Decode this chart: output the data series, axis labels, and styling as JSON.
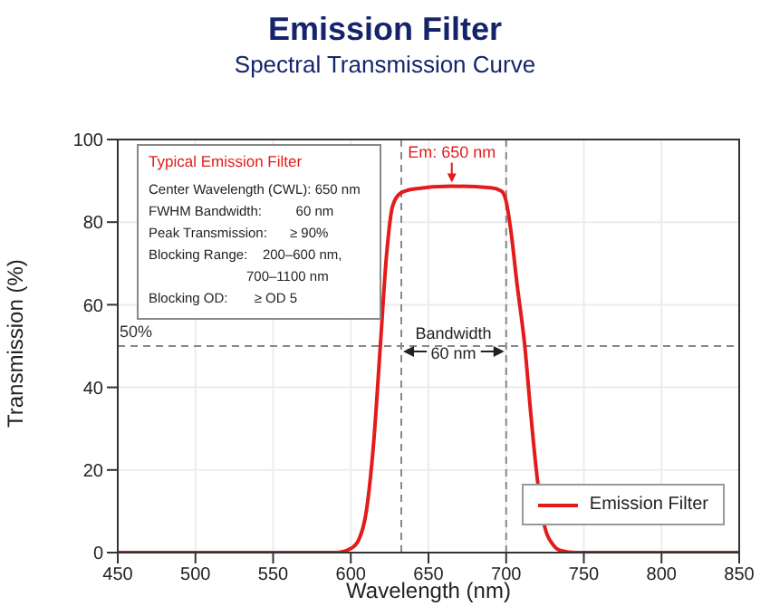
{
  "chart_data": {
    "type": "line",
    "title": "Emission Filter",
    "subtitle": "Spectral Transmission Curve",
    "xlabel": "Wavelength (nm)",
    "ylabel": "Transmission (%)",
    "x": [
      450,
      590,
      600,
      605,
      610,
      615,
      619,
      623,
      627,
      632,
      640,
      665,
      690,
      697,
      700,
      703,
      707,
      712,
      716,
      720,
      725,
      730,
      735,
      745,
      850
    ],
    "series": [
      {
        "name": "Emission Filter",
        "color": "#e31b1b",
        "values": [
          0,
          0,
          1,
          3,
          10,
          28,
          50,
          72,
          84,
          87,
          88,
          88.7,
          88.3,
          87.5,
          85,
          78,
          65,
          50,
          33,
          18,
          6,
          2,
          0.5,
          0,
          0
        ]
      }
    ],
    "xlim": [
      450,
      850
    ],
    "xticks": [
      450,
      500,
      550,
      600,
      650,
      700,
      750,
      800,
      850
    ],
    "ylim": [
      0,
      100
    ],
    "yticks": [
      0,
      20,
      40,
      60,
      80,
      100
    ],
    "grid": true,
    "legend": "bottom right",
    "marker": "none",
    "line_style": "solid",
    "ref_lines": [
      {
        "axis": "y",
        "value": 50,
        "label": "50%",
        "color": "#888888",
        "line_style": "dashed"
      },
      {
        "axis": "x",
        "value": 632.5,
        "color": "#888888",
        "line_style": "dashed"
      },
      {
        "axis": "x",
        "value": 700,
        "color": "#888888",
        "line_style": "dashed"
      }
    ],
    "annotations": [
      {
        "text": "Em: 650 nm",
        "x": 665,
        "y": 88.7
      },
      {
        "text": "Bandwidth\n60 nm",
        "x": 666,
        "y": 50
      },
      "Typical Emission Filter",
      "Center Wavelength (CWL): 650 nm",
      "FWHM Bandwidth:         60 nm",
      "Peak Transmission:      ≥ 90%",
      "Blocking Range:    200–600 nm,\n700–1100 nm",
      "Blocking OD:       ≥ OD 5"
    ]
  }
}
